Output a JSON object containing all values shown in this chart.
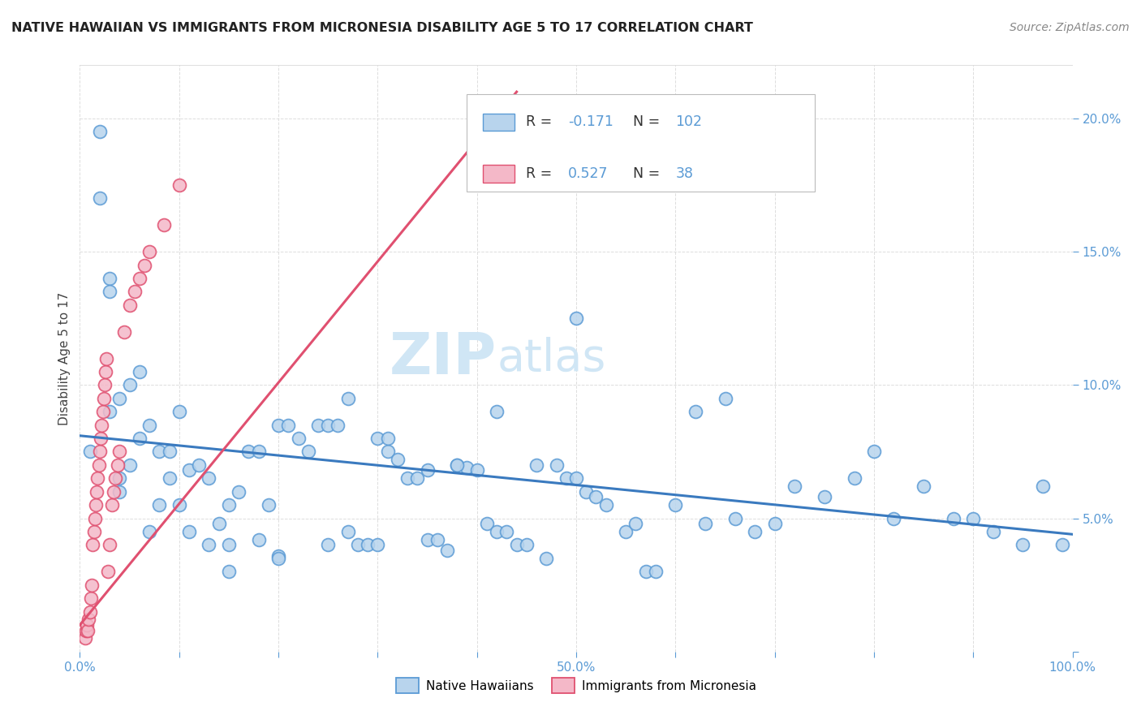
{
  "title": "NATIVE HAWAIIAN VS IMMIGRANTS FROM MICRONESIA DISABILITY AGE 5 TO 17 CORRELATION CHART",
  "source": "Source: ZipAtlas.com",
  "ylabel": "Disability Age 5 to 17",
  "xlim": [
    0.0,
    1.0
  ],
  "ylim": [
    0.0,
    0.22
  ],
  "x_tick_positions": [
    0.0,
    0.1,
    0.2,
    0.3,
    0.4,
    0.5,
    0.6,
    0.7,
    0.8,
    0.9,
    1.0
  ],
  "x_tick_labels": [
    "0.0%",
    "",
    "",
    "",
    "",
    "50.0%",
    "",
    "",
    "",
    "",
    "100.0%"
  ],
  "y_tick_positions": [
    0.0,
    0.05,
    0.1,
    0.15,
    0.2
  ],
  "y_tick_labels": [
    "",
    "5.0%",
    "10.0%",
    "15.0%",
    "20.0%"
  ],
  "watermark": "ZIPatlas",
  "r_blue": -0.171,
  "n_blue": 102,
  "r_pink": 0.527,
  "n_pink": 38,
  "blue_scatter_x": [
    0.01,
    0.02,
    0.02,
    0.03,
    0.03,
    0.03,
    0.04,
    0.04,
    0.04,
    0.05,
    0.05,
    0.06,
    0.06,
    0.07,
    0.07,
    0.08,
    0.08,
    0.09,
    0.09,
    0.1,
    0.1,
    0.11,
    0.11,
    0.12,
    0.13,
    0.13,
    0.14,
    0.15,
    0.15,
    0.16,
    0.17,
    0.18,
    0.18,
    0.19,
    0.2,
    0.2,
    0.21,
    0.22,
    0.23,
    0.24,
    0.25,
    0.25,
    0.26,
    0.27,
    0.28,
    0.29,
    0.3,
    0.3,
    0.31,
    0.32,
    0.33,
    0.34,
    0.35,
    0.35,
    0.36,
    0.37,
    0.38,
    0.39,
    0.4,
    0.41,
    0.42,
    0.43,
    0.44,
    0.45,
    0.46,
    0.47,
    0.48,
    0.49,
    0.5,
    0.51,
    0.52,
    0.53,
    0.55,
    0.56,
    0.57,
    0.58,
    0.6,
    0.62,
    0.63,
    0.65,
    0.66,
    0.68,
    0.7,
    0.72,
    0.75,
    0.78,
    0.8,
    0.82,
    0.85,
    0.88,
    0.9,
    0.92,
    0.95,
    0.97,
    0.99,
    0.5,
    0.38,
    0.27,
    0.42,
    0.31,
    0.2,
    0.15
  ],
  "blue_scatter_y": [
    0.075,
    0.195,
    0.17,
    0.14,
    0.135,
    0.09,
    0.095,
    0.065,
    0.06,
    0.1,
    0.07,
    0.105,
    0.08,
    0.085,
    0.045,
    0.075,
    0.055,
    0.075,
    0.065,
    0.09,
    0.055,
    0.068,
    0.045,
    0.07,
    0.065,
    0.04,
    0.048,
    0.055,
    0.04,
    0.06,
    0.075,
    0.075,
    0.042,
    0.055,
    0.085,
    0.036,
    0.085,
    0.08,
    0.075,
    0.085,
    0.085,
    0.04,
    0.085,
    0.045,
    0.04,
    0.04,
    0.04,
    0.08,
    0.075,
    0.072,
    0.065,
    0.065,
    0.068,
    0.042,
    0.042,
    0.038,
    0.07,
    0.069,
    0.068,
    0.048,
    0.045,
    0.045,
    0.04,
    0.04,
    0.07,
    0.035,
    0.07,
    0.065,
    0.065,
    0.06,
    0.058,
    0.055,
    0.045,
    0.048,
    0.03,
    0.03,
    0.055,
    0.09,
    0.048,
    0.095,
    0.05,
    0.045,
    0.048,
    0.062,
    0.058,
    0.065,
    0.075,
    0.05,
    0.062,
    0.05,
    0.05,
    0.045,
    0.04,
    0.062,
    0.04,
    0.125,
    0.07,
    0.095,
    0.09,
    0.08,
    0.035,
    0.03
  ],
  "pink_scatter_x": [
    0.005,
    0.006,
    0.007,
    0.008,
    0.009,
    0.01,
    0.011,
    0.012,
    0.013,
    0.014,
    0.015,
    0.016,
    0.017,
    0.018,
    0.019,
    0.02,
    0.021,
    0.022,
    0.023,
    0.024,
    0.025,
    0.026,
    0.027,
    0.028,
    0.03,
    0.032,
    0.034,
    0.036,
    0.038,
    0.04,
    0.045,
    0.05,
    0.055,
    0.06,
    0.065,
    0.07,
    0.085,
    0.1
  ],
  "pink_scatter_y": [
    0.005,
    0.008,
    0.01,
    0.008,
    0.012,
    0.015,
    0.02,
    0.025,
    0.04,
    0.045,
    0.05,
    0.055,
    0.06,
    0.065,
    0.07,
    0.075,
    0.08,
    0.085,
    0.09,
    0.095,
    0.1,
    0.105,
    0.11,
    0.03,
    0.04,
    0.055,
    0.06,
    0.065,
    0.07,
    0.075,
    0.12,
    0.13,
    0.135,
    0.14,
    0.145,
    0.15,
    0.16,
    0.175
  ],
  "blue_line_x": [
    0.0,
    1.0
  ],
  "blue_line_y": [
    0.081,
    0.044
  ],
  "pink_line_x": [
    0.0,
    0.44
  ],
  "pink_line_y": [
    0.01,
    0.21
  ],
  "blue_dot_face": "#b8d4ed",
  "blue_dot_edge": "#5b9bd5",
  "pink_dot_face": "#f4b8c8",
  "pink_dot_edge": "#e05070",
  "blue_line_color": "#3a7abf",
  "pink_line_color": "#e05070",
  "background_color": "#ffffff",
  "grid_color": "#dddddd",
  "title_color": "#222222",
  "source_color": "#888888",
  "axis_label_color": "#444444",
  "tick_color": "#5b9bd5",
  "watermark_color": "#d0e6f5"
}
